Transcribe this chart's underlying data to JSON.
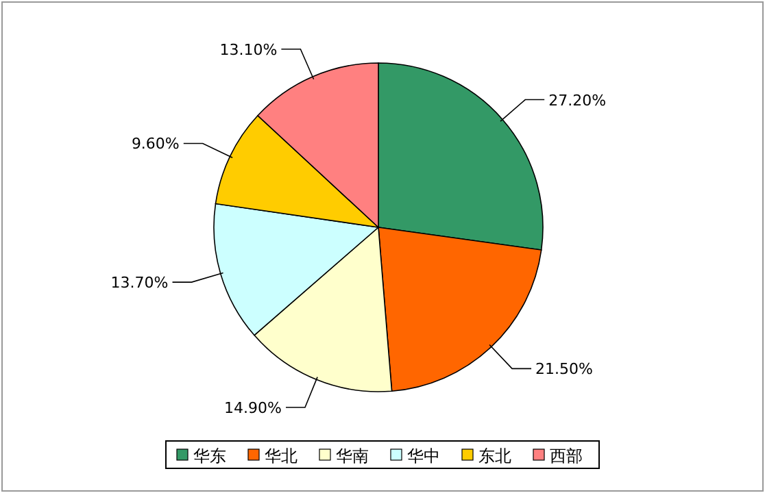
{
  "chart_data": {
    "type": "pie",
    "categories": [
      "华东",
      "华北",
      "华南",
      "华中",
      "东北",
      "西部"
    ],
    "values": [
      27.2,
      21.5,
      14.9,
      13.7,
      9.6,
      13.1
    ],
    "value_labels": [
      "27.20%",
      "21.50%",
      "14.90%",
      "13.70%",
      "9.60%",
      "13.10%"
    ],
    "colors": [
      "#339966",
      "#ff6600",
      "#ffffcc",
      "#ccffff",
      "#ffcc00",
      "#ff8080"
    ],
    "legend": "bottom"
  }
}
